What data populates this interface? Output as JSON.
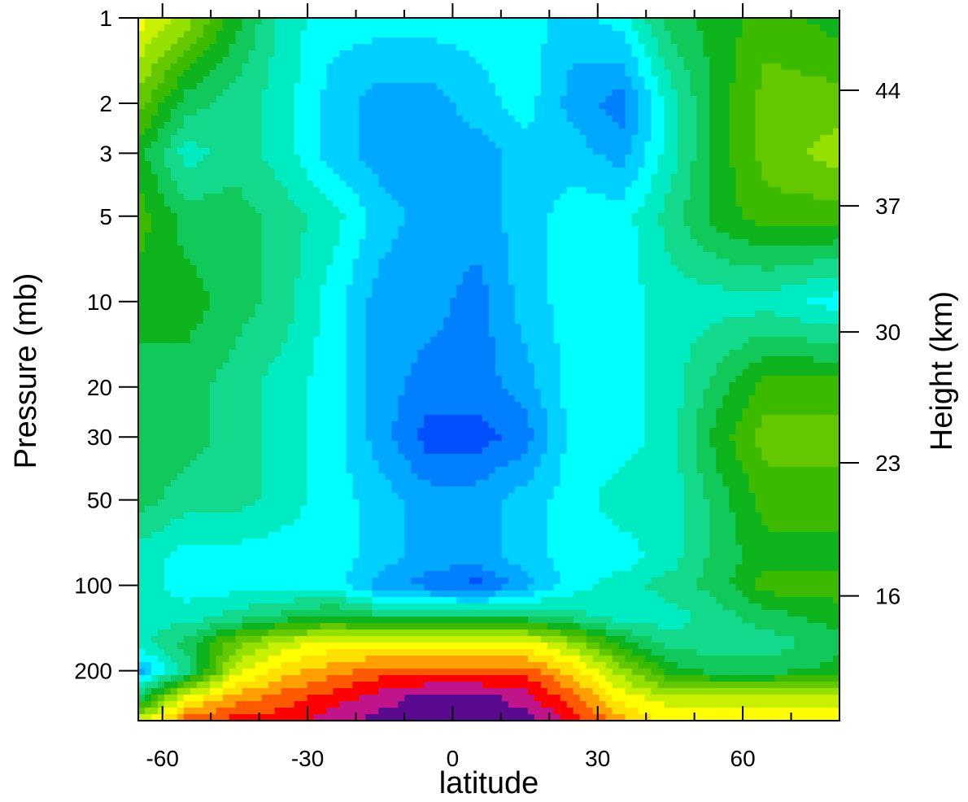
{
  "chart_data": {
    "type": "heatmap",
    "xlabel": "latitude",
    "ylabel": "Pressure (mb)",
    "y2label": "Height (km)",
    "xlim": [
      -65,
      80
    ],
    "ylim": [
      300,
      1
    ],
    "yscale": "log",
    "x_ticks": [
      {
        "value": -60,
        "label": "-60"
      },
      {
        "value": -30,
        "label": "-30"
      },
      {
        "value": 0,
        "label": "0"
      },
      {
        "value": 30,
        "label": "30"
      },
      {
        "value": 60,
        "label": "60"
      }
    ],
    "x_minor_ticks": [
      -50,
      -40,
      -20,
      -10,
      10,
      20,
      40,
      50,
      70,
      80
    ],
    "y_ticks": [
      {
        "value": 1,
        "label": "1"
      },
      {
        "value": 2,
        "label": "2"
      },
      {
        "value": 3,
        "label": "3"
      },
      {
        "value": 5,
        "label": "5"
      },
      {
        "value": 10,
        "label": "10"
      },
      {
        "value": 20,
        "label": "20"
      },
      {
        "value": 30,
        "label": "30"
      },
      {
        "value": 50,
        "label": "50"
      },
      {
        "value": 100,
        "label": "100"
      },
      {
        "value": 200,
        "label": "200"
      }
    ],
    "y2_ticks": [
      {
        "pressure": 1.8,
        "label": "44"
      },
      {
        "pressure": 4.6,
        "label": "37"
      },
      {
        "pressure": 12.8,
        "label": "30"
      },
      {
        "pressure": 37,
        "label": "23"
      },
      {
        "pressure": 109,
        "label": "16"
      }
    ],
    "colormap": [
      "#5a0a90",
      "#c0158a",
      "#ff0000",
      "#ff5a00",
      "#ffa000",
      "#ffe000",
      "#ffff00",
      "#c8f000",
      "#96e000",
      "#64c800",
      "#3cba00",
      "#0eb41e",
      "#11c95a",
      "#12d98c",
      "#00ebc2",
      "#00ffff",
      "#00d0ff",
      "#00a8ff",
      "#0080ff",
      "#0050ff"
    ],
    "field": {
      "note_units": "",
      "grid_x": [
        -65,
        -55,
        -45,
        -35,
        -25,
        -15,
        -5,
        5,
        15,
        25,
        35,
        45,
        55,
        65,
        80
      ],
      "grid_p": [
        1,
        2,
        3,
        5,
        10,
        20,
        30,
        50,
        80,
        100,
        130,
        160,
        200,
        250,
        300
      ],
      "values": [
        [
          6,
          8,
          11,
          14,
          15,
          15,
          15,
          15,
          15,
          16,
          15,
          12,
          11,
          10,
          11
        ],
        [
          9,
          12,
          13,
          14,
          16,
          17,
          17,
          16,
          15,
          17,
          18,
          14,
          11,
          9,
          9
        ],
        [
          11,
          14,
          13,
          14,
          16,
          17,
          17,
          17,
          16,
          16,
          17,
          14,
          11,
          9,
          8
        ],
        [
          10,
          12,
          12,
          13,
          14,
          16,
          17,
          17,
          16,
          15,
          15,
          13,
          11,
          10,
          10
        ],
        [
          11,
          11,
          12,
          13,
          15,
          17,
          17,
          18,
          16,
          15,
          15,
          14,
          14,
          14,
          15
        ],
        [
          12,
          12,
          13,
          14,
          15,
          17,
          18,
          18,
          17,
          15,
          15,
          14,
          12,
          10,
          10
        ],
        [
          12,
          12,
          13,
          14,
          15,
          17,
          19,
          19,
          18,
          15,
          15,
          14,
          11,
          9,
          9
        ],
        [
          12,
          13,
          13,
          14,
          15,
          16,
          17,
          17,
          16,
          15,
          14,
          14,
          12,
          10,
          10
        ],
        [
          14,
          15,
          15,
          15,
          15,
          16,
          17,
          17,
          16,
          15,
          15,
          14,
          12,
          11,
          11
        ],
        [
          14,
          15,
          15,
          15,
          15,
          17,
          18,
          19,
          17,
          15,
          14,
          13,
          12,
          10,
          10
        ],
        [
          14,
          14,
          13,
          12,
          11,
          12,
          12,
          12,
          12,
          13,
          14,
          14,
          13,
          12,
          11
        ],
        [
          14,
          12,
          9,
          7,
          6,
          6,
          6,
          6,
          6,
          8,
          11,
          13,
          13,
          13,
          12
        ],
        [
          17,
          13,
          7,
          5,
          4,
          3,
          3,
          3,
          3,
          5,
          8,
          11,
          12,
          12,
          11
        ],
        [
          12,
          6,
          4,
          3,
          2,
          1,
          0,
          0,
          1,
          3,
          6,
          7,
          7,
          7,
          7
        ],
        [
          7,
          3,
          2,
          2,
          1,
          0,
          0,
          0,
          0,
          2,
          4,
          6,
          6,
          6,
          6
        ]
      ]
    }
  }
}
